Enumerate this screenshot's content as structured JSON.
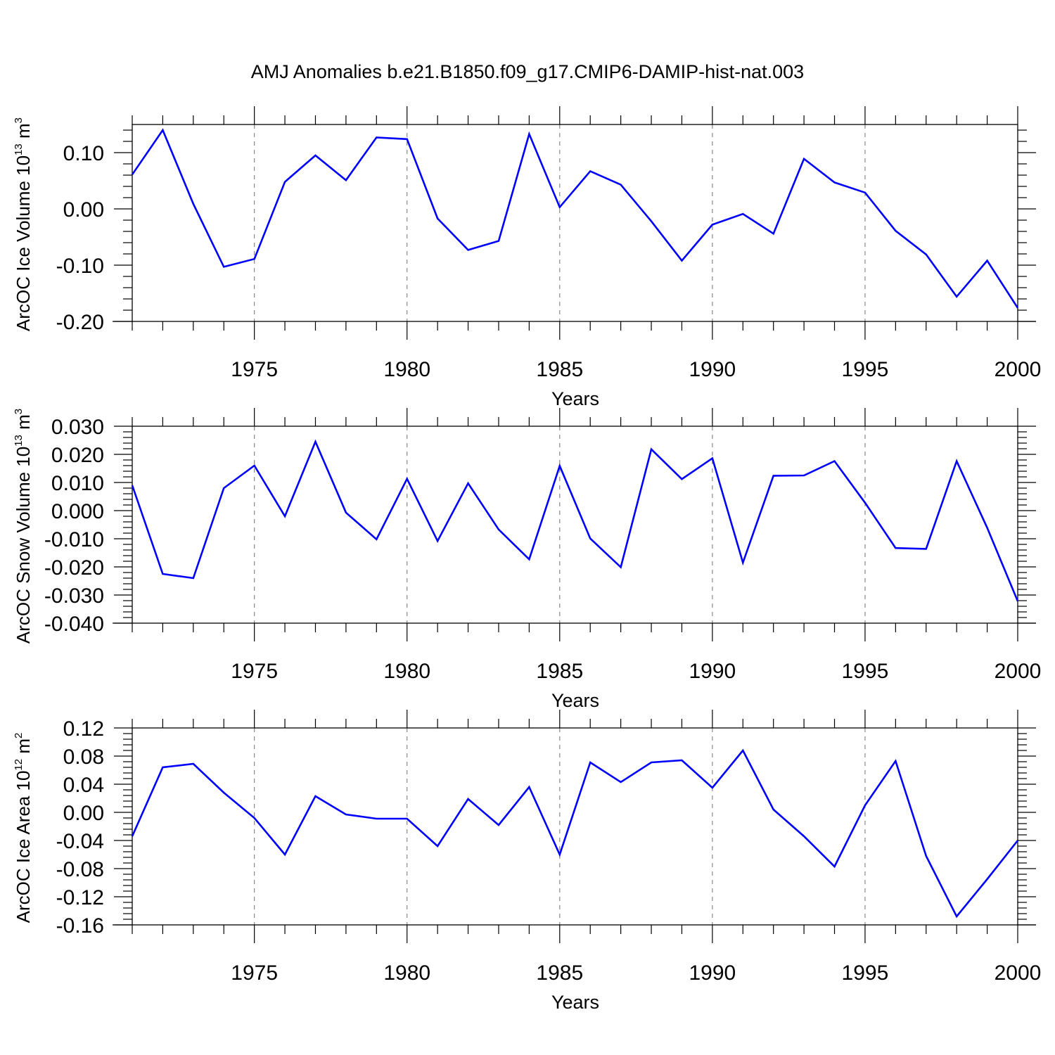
{
  "title": "AMJ Anomalies b.e21.B1850.f09_g17.CMIP6-DAMIP-hist-nat.003",
  "colors": {
    "line": "#0000ff",
    "axis": "#000000",
    "grid": "#888888"
  },
  "chart_data": [
    {
      "type": "line",
      "ylabel": {
        "main": "ArcOC Ice Volume 10",
        "sup1": "13",
        "mid": " m",
        "sup2": "3"
      },
      "xlabel": "Years",
      "xlim": [
        1971,
        2000
      ],
      "ylim": [
        -0.2,
        0.15
      ],
      "yticks": [
        -0.2,
        -0.1,
        0.0,
        0.1
      ],
      "ytick_labels": [
        "-0.20",
        "-0.10",
        "0.00",
        "0.10"
      ],
      "yminor_step": 0.02,
      "xticks": [
        1975,
        1980,
        1985,
        1990,
        1995,
        2000
      ],
      "xtick_labels": [
        "1975",
        "1980",
        "1985",
        "1990",
        "1995",
        "2000"
      ],
      "grid": "vertical-dashed",
      "series": [
        {
          "name": "Ice Volume",
          "x": [
            1971,
            1972,
            1973,
            1974,
            1975,
            1976,
            1977,
            1978,
            1979,
            1980,
            1981,
            1982,
            1983,
            1984,
            1985,
            1986,
            1987,
            1988,
            1989,
            1990,
            1991,
            1992,
            1993,
            1994,
            1995,
            1996,
            1997,
            1998,
            1999,
            2000
          ],
          "values": [
            0.061,
            0.14,
            0.009,
            -0.103,
            -0.089,
            0.048,
            0.095,
            0.051,
            0.127,
            0.124,
            -0.017,
            -0.073,
            -0.057,
            0.133,
            0.003,
            0.067,
            0.043,
            -0.022,
            -0.092,
            -0.028,
            -0.009,
            -0.044,
            0.089,
            0.047,
            0.029,
            -0.039,
            -0.081,
            -0.156,
            -0.092,
            -0.176
          ]
        }
      ]
    },
    {
      "type": "line",
      "ylabel": {
        "main": "ArcOC Snow Volume 10",
        "sup1": "13",
        "mid": " m",
        "sup2": "3"
      },
      "xlabel": "Years",
      "xlim": [
        1971,
        2000
      ],
      "ylim": [
        -0.04,
        0.03
      ],
      "yticks": [
        -0.04,
        -0.03,
        -0.02,
        -0.01,
        0.0,
        0.01,
        0.02,
        0.03
      ],
      "ytick_labels": [
        "-0.040",
        "-0.030",
        "-0.020",
        "-0.010",
        "0.000",
        "0.010",
        "0.020",
        "0.030"
      ],
      "yminor_step": 0.002,
      "xticks": [
        1975,
        1980,
        1985,
        1990,
        1995,
        2000
      ],
      "xtick_labels": [
        "1975",
        "1980",
        "1985",
        "1990",
        "1995",
        "2000"
      ],
      "grid": "vertical-dashed",
      "series": [
        {
          "name": "Snow Volume",
          "x": [
            1971,
            1972,
            1973,
            1974,
            1975,
            1976,
            1977,
            1978,
            1979,
            1980,
            1981,
            1982,
            1983,
            1984,
            1985,
            1986,
            1987,
            1988,
            1989,
            1990,
            1991,
            1992,
            1993,
            1994,
            1995,
            1996,
            1997,
            1998,
            1999,
            2000
          ],
          "values": [
            0.009,
            -0.0225,
            -0.024,
            0.008,
            0.016,
            -0.002,
            0.0245,
            -0.0007,
            -0.0102,
            0.0113,
            -0.0108,
            0.0097,
            -0.0067,
            -0.0173,
            0.0159,
            -0.0099,
            -0.0201,
            0.0218,
            0.0112,
            0.0186,
            -0.0185,
            0.0124,
            0.0125,
            0.0176,
            0.0028,
            -0.0133,
            -0.0136,
            0.0176,
            -0.0061,
            -0.0322
          ]
        }
      ]
    },
    {
      "type": "line",
      "ylabel": {
        "main": "ArcOC Ice Area 10",
        "sup1": "12",
        "mid": " m",
        "sup2": "2"
      },
      "xlabel": "Years",
      "xlim": [
        1971,
        2000
      ],
      "ylim": [
        -0.16,
        0.12
      ],
      "yticks": [
        -0.16,
        -0.12,
        -0.08,
        -0.04,
        0.0,
        0.04,
        0.08,
        0.12
      ],
      "ytick_labels": [
        "-0.16",
        "-0.12",
        "-0.08",
        "-0.04",
        "0.00",
        "0.04",
        "0.08",
        "0.12"
      ],
      "yminor_step": 0.008,
      "xticks": [
        1975,
        1980,
        1985,
        1990,
        1995,
        2000
      ],
      "xtick_labels": [
        "1975",
        "1980",
        "1985",
        "1990",
        "1995",
        "2000"
      ],
      "grid": "vertical-dashed",
      "series": [
        {
          "name": "Ice Area",
          "x": [
            1971,
            1972,
            1973,
            1974,
            1975,
            1976,
            1977,
            1978,
            1979,
            1980,
            1981,
            1982,
            1983,
            1984,
            1985,
            1986,
            1987,
            1988,
            1989,
            1990,
            1991,
            1992,
            1993,
            1994,
            1995,
            1996,
            1997,
            1998,
            1999,
            2000
          ],
          "values": [
            -0.034,
            0.064,
            0.069,
            0.028,
            -0.008,
            -0.06,
            0.023,
            -0.003,
            -0.009,
            -0.009,
            -0.048,
            0.019,
            -0.018,
            0.036,
            -0.06,
            0.071,
            0.043,
            0.071,
            0.074,
            0.035,
            0.088,
            0.004,
            -0.034,
            -0.077,
            0.01,
            0.073,
            -0.062,
            -0.148,
            -0.095,
            -0.04
          ]
        }
      ]
    }
  ]
}
